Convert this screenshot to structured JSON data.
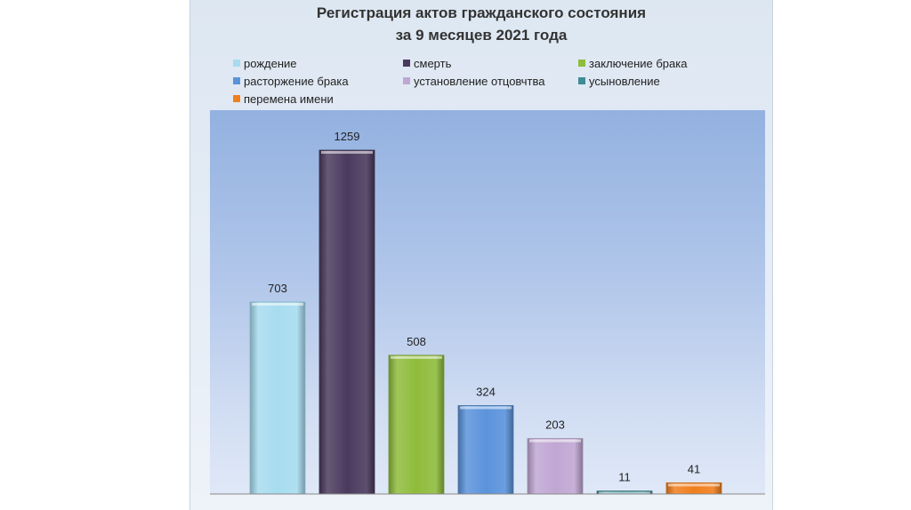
{
  "chart_data": {
    "type": "bar",
    "title_line1": "Регистрация актов гражданского состояния",
    "title_line2": "за 9 месяцев 2021 года",
    "categories": [
      "рождение",
      "смерть",
      "заключение брака",
      "расторжение брака",
      "установление отцовчтва",
      "усыновление",
      "перемена имени"
    ],
    "values": [
      703,
      1259,
      508,
      324,
      203,
      11,
      41
    ],
    "colors": [
      "#a7dcef",
      "#4b3a5e",
      "#8fbc3c",
      "#5b93db",
      "#c0a7d3",
      "#3f8b96",
      "#f07f1d"
    ],
    "legend_position": "top",
    "ylim": [
      0,
      1400
    ],
    "grid": false
  }
}
